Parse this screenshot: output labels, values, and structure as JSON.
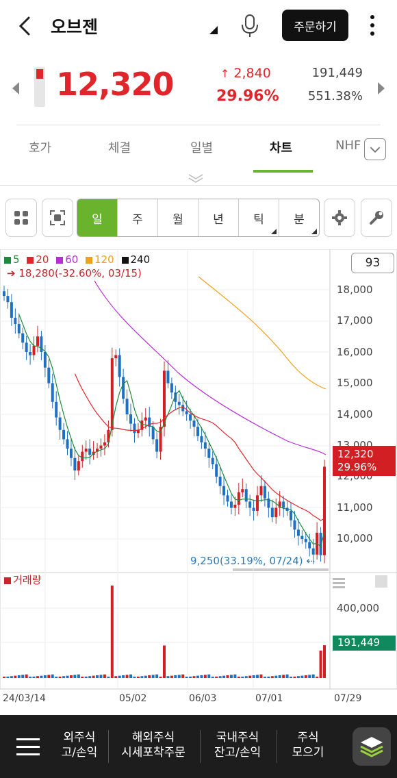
{
  "header": {
    "title": "오브젠",
    "order_button": "주문하기"
  },
  "quote": {
    "price": "12,320",
    "change": "2,840",
    "change_pct": "29.96%",
    "volume": "191,449",
    "volume_pct": "551.38%"
  },
  "tabs": [
    {
      "label": "호가"
    },
    {
      "label": "체결"
    },
    {
      "label": "일별"
    },
    {
      "label": "차트"
    },
    {
      "label": "NHF"
    }
  ],
  "periods": [
    "일",
    "주",
    "월",
    "년",
    "틱",
    "분"
  ],
  "chart": {
    "legend": [
      {
        "label": "5",
        "color": "#1f8a3a"
      },
      {
        "label": "20",
        "color": "#e0262b"
      },
      {
        "label": "60",
        "color": "#b52fd6"
      },
      {
        "label": "120",
        "color": "#f0a020"
      },
      {
        "label": "240",
        "color": "#111111"
      }
    ],
    "max_info": "18,280(-32.60%, 03/15)",
    "min_info": "9,250(33.19%, 07/24)",
    "count": "93",
    "current_tag_price": "12,320",
    "current_tag_pct": "29.96%",
    "volume_label": "거래량",
    "volume_tag": "191,449",
    "volume_axis": "400,000"
  },
  "chart_data": {
    "type": "candlestick",
    "y_ticks": [
      "18,000",
      "17,000",
      "16,000",
      "15,000",
      "14,000",
      "13,000",
      "12,000",
      "11,000",
      "10,000"
    ],
    "x_ticks": [
      "24/03/14",
      "05/02",
      "06/03",
      "07/01",
      "07/29"
    ],
    "ylim": [
      9250,
      18280
    ],
    "last_close": 12320,
    "last_volume": 191449
  },
  "bottom_nav": [
    {
      "line1": "외주식",
      "line2": "고/손익"
    },
    {
      "line1": "해외주식",
      "line2": "시세포착주문"
    },
    {
      "line1": "국내주식",
      "line2": "잔고/손익"
    },
    {
      "line1": "주식",
      "line2": "모으기"
    }
  ]
}
